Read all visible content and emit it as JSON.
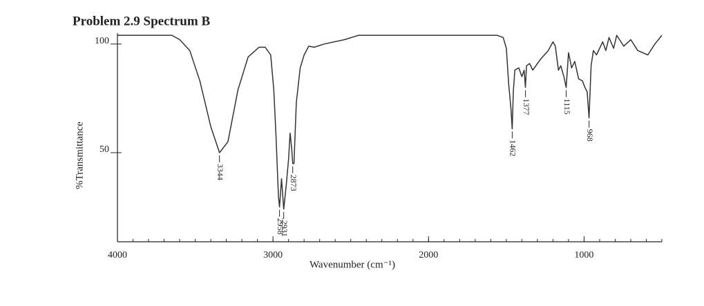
{
  "chart_data": {
    "type": "line",
    "title": "Problem 2.9 Spectrum B",
    "x_label": "Wavenumber (cm⁻¹)",
    "y_label": "%Transmittance",
    "x": [
      4000,
      3650,
      3600,
      3535,
      3470,
      3400,
      3344,
      3290,
      3225,
      3160,
      3090,
      3050,
      3015,
      2995,
      2980,
      2965,
      2958,
      2945,
      2931,
      2915,
      2900,
      2890,
      2880,
      2873,
      2865,
      2850,
      2825,
      2800,
      2770,
      2735,
      2670,
      2540,
      2450,
      1560,
      1520,
      1500,
      1485,
      1470,
      1462,
      1455,
      1445,
      1420,
      1400,
      1385,
      1377,
      1370,
      1350,
      1330,
      1280,
      1230,
      1200,
      1185,
      1165,
      1150,
      1130,
      1115,
      1100,
      1080,
      1060,
      1035,
      1010,
      995,
      980,
      968,
      955,
      940,
      920,
      900,
      880,
      860,
      840,
      810,
      790,
      745,
      700,
      655,
      590,
      545,
      500
    ],
    "series": [
      {
        "name": "Spectrum B",
        "color": "#333333",
        "values": [
          104,
          104,
          102,
          97,
          83,
          62,
          50,
          55,
          79,
          94,
          98.5,
          98.5,
          95,
          79,
          57,
          30,
          25,
          38,
          24,
          35,
          47,
          59,
          52,
          45,
          45,
          73,
          89,
          95,
          99,
          98.5,
          100,
          102,
          104,
          104,
          103,
          98,
          82,
          70,
          61,
          78,
          88,
          89,
          85,
          88,
          80,
          90,
          91,
          88,
          93,
          97,
          101,
          99,
          88,
          90,
          85,
          80,
          96,
          89,
          92,
          84,
          83,
          80,
          78,
          66,
          90,
          97,
          95,
          98,
          101,
          97,
          103,
          98,
          104,
          99,
          102,
          97,
          95,
          100,
          104
        ]
      }
    ],
    "peaks": [
      3344,
      2958,
      2931,
      2873,
      1462,
      1377,
      1115,
      968
    ],
    "xlim": [
      4000,
      500
    ],
    "ylim": [
      9,
      105
    ],
    "xticks": [
      4000,
      3000,
      2000,
      1000
    ],
    "yticks": [
      50,
      100
    ]
  }
}
